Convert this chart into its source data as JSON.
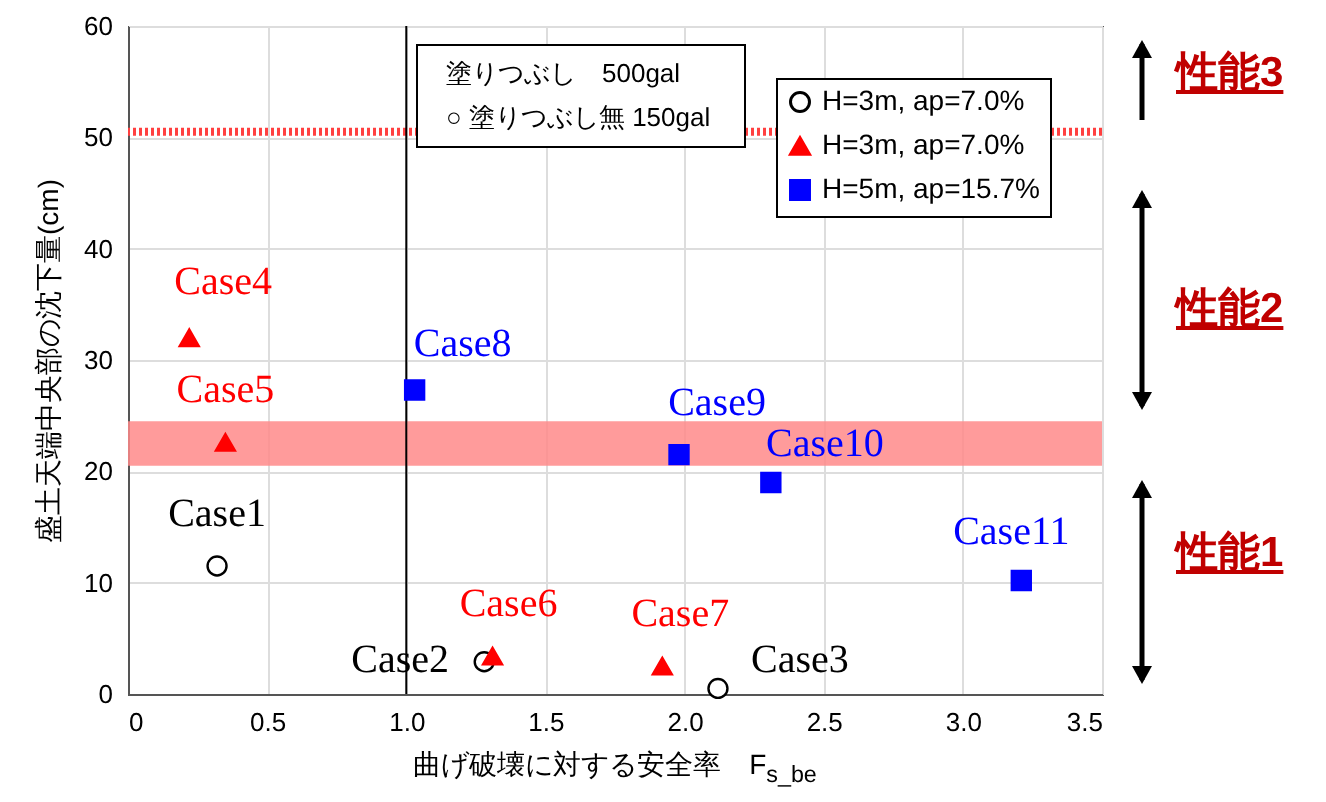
{
  "chart_data": {
    "type": "scatter",
    "xlabel": "曲げ破壊に対する安全率　F$_{s_be}$",
    "ylabel": "盛土天端中央部の沈下量(cm)",
    "series": [
      {
        "name": "H=3m, ap=7.0%",
        "color": "#000000",
        "marker": "circle",
        "x": [
          0.32,
          1.28,
          2.12
        ],
        "values": [
          11.5,
          2.9,
          0.5
        ],
        "value_labels": [
          "Case1",
          "Case2",
          "Case3"
        ]
      },
      {
        "name": "H=3m, ap=7.0%",
        "color": "#ff0000",
        "marker": "triangle",
        "x": [
          0.22,
          0.35,
          1.31,
          1.92
        ],
        "values": [
          32,
          22.6,
          3.4,
          2.5
        ],
        "value_labels": [
          "Case4",
          "Case5",
          "Case6",
          "Case7"
        ]
      },
      {
        "name": "H=5m, ap=15.7%",
        "color": "#0000ff",
        "marker": "square",
        "x": [
          1.03,
          1.98,
          2.31,
          3.21
        ],
        "values": [
          27.3,
          21.5,
          19,
          10.2
        ],
        "value_labels": [
          "Case8",
          "Case9",
          "Case10",
          "Case11"
        ]
      }
    ],
    "xlim": [
      0,
      3.5
    ],
    "xticks": [
      0,
      0.5,
      {
        "value": 1,
        "label": "1.0"
      },
      1.5,
      {
        "value": 2,
        "label": "2.0"
      },
      2.5,
      {
        "value": 3,
        "label": "3.0"
      },
      3.5
    ],
    "ylim": [
      0,
      60
    ],
    "yticks": [
      0,
      10,
      20,
      30,
      40,
      50,
      60
    ],
    "ref_lines": [
      {
        "axis": "y",
        "value": 50.5,
        "color": "#ff4040",
        "line_style": "dotted"
      },
      {
        "axis": "x",
        "value": 1,
        "color": "#000000"
      }
    ],
    "bands": [
      {
        "axis": "y",
        "from": 20.5,
        "to": 24.5,
        "color": "#ff8a8a"
      }
    ],
    "annotations": [
      "塗りつぶし　500gal",
      "○ 塗りつぶし無 150gal",
      "性能3",
      "性能2",
      "性能1"
    ],
    "grid": true,
    "legend": "top right"
  }
}
